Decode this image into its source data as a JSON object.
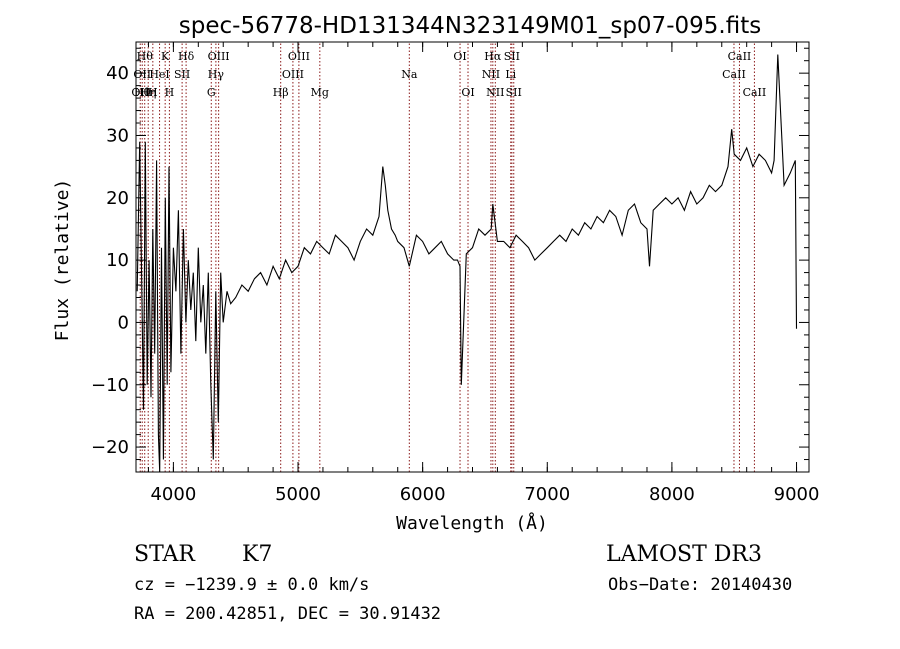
{
  "chart_data": {
    "type": "line",
    "title": "spec-56778-HD131344N323149M01_sp07-095.fits",
    "xlabel": "Wavelength (Å)",
    "ylabel": "Flux (relative)",
    "xlim": [
      3700,
      9100
    ],
    "ylim": [
      -24,
      45
    ],
    "xticks": [
      4000,
      5000,
      6000,
      7000,
      8000,
      9000
    ],
    "yticks": [
      -20,
      -10,
      0,
      10,
      20,
      30,
      40
    ],
    "grid": false,
    "line_color": "#000000",
    "marker_color": "#8b1a1a",
    "series": [
      {
        "x": [
          3710,
          3730,
          3760,
          3775,
          3790,
          3805,
          3820,
          3835,
          3850,
          3865,
          3880,
          3890,
          3905,
          3920,
          3935,
          3950,
          3965,
          3980,
          4000,
          4020,
          4040,
          4060,
          4080,
          4100,
          4120,
          4140,
          4160,
          4180,
          4200,
          4220,
          4240,
          4260,
          4280,
          4300,
          4320,
          4340,
          4360,
          4380,
          4400,
          4430,
          4460,
          4500,
          4550,
          4600,
          4650,
          4700,
          4750,
          4800,
          4850,
          4900,
          4950,
          5000,
          5050,
          5100,
          5150,
          5200,
          5250,
          5300,
          5350,
          5400,
          5450,
          5500,
          5550,
          5600,
          5650,
          5680,
          5700,
          5720,
          5750,
          5780,
          5800,
          5850,
          5893,
          5950,
          6000,
          6050,
          6100,
          6150,
          6200,
          6250,
          6280,
          6300,
          6310,
          6350,
          6400,
          6450,
          6500,
          6550,
          6563,
          6600,
          6650,
          6700,
          6750,
          6800,
          6850,
          6900,
          6950,
          7000,
          7050,
          7100,
          7150,
          7200,
          7250,
          7300,
          7350,
          7400,
          7450,
          7500,
          7550,
          7600,
          7650,
          7700,
          7750,
          7800,
          7820,
          7850,
          7900,
          7950,
          8000,
          8050,
          8100,
          8150,
          8200,
          8250,
          8300,
          8350,
          8400,
          8450,
          8480,
          8500,
          8550,
          8600,
          8650,
          8700,
          8750,
          8800,
          8820,
          8850,
          8900,
          8950,
          8990,
          9000
        ],
        "y": [
          5,
          29,
          -14,
          29,
          -10,
          10,
          -12,
          15,
          -5,
          26,
          -18,
          -24,
          12,
          -22,
          20,
          -10,
          25,
          -8,
          12,
          5,
          18,
          -5,
          15,
          0,
          10,
          2,
          8,
          -3,
          12,
          0,
          6,
          -5,
          8,
          -10,
          -22,
          5,
          -16,
          8,
          0,
          5,
          3,
          4,
          6,
          5,
          7,
          8,
          6,
          9,
          7,
          10,
          8,
          9,
          12,
          11,
          13,
          12,
          11,
          14,
          13,
          12,
          10,
          13,
          15,
          14,
          17,
          25,
          22,
          18,
          15,
          14,
          13,
          12,
          9,
          14,
          13,
          11,
          12,
          13,
          11,
          10,
          10,
          9,
          -10,
          11,
          12,
          15,
          14,
          15,
          19,
          13,
          13,
          12,
          14,
          13,
          12,
          10,
          11,
          12,
          13,
          14,
          13,
          15,
          14,
          16,
          15,
          17,
          16,
          18,
          17,
          14,
          18,
          19,
          16,
          15,
          9,
          18,
          19,
          20,
          19,
          20,
          18,
          21,
          19,
          20,
          22,
          21,
          22,
          25,
          31,
          27,
          26,
          28,
          25,
          27,
          26,
          24,
          26,
          43,
          22,
          24,
          26,
          -1
        ]
      }
    ],
    "line_markers": [
      {
        "x": 3734,
        "labels": [
          "OII"
        ],
        "row": 2
      },
      {
        "x": 3750,
        "labels": [
          "OII",
          "Hθ"
        ],
        "row": 1
      },
      {
        "x": 3770,
        "labels": [
          "Hθ"
        ],
        "row": 0
      },
      {
        "x": 3798,
        "labels": [
          "Hη"
        ],
        "row": 2
      },
      {
        "x": 3835,
        "labels": [
          "H"
        ],
        "row": 2
      },
      {
        "x": 3889,
        "labels": [
          "HeI"
        ],
        "row": 1
      },
      {
        "x": 3934,
        "labels": [
          "K"
        ],
        "row": 0
      },
      {
        "x": 3968,
        "labels": [
          "H"
        ],
        "row": 2
      },
      {
        "x": 4070,
        "labels": [
          "SII"
        ],
        "row": 1
      },
      {
        "x": 4102,
        "labels": [
          "Hδ"
        ],
        "row": 0
      },
      {
        "x": 4304,
        "labels": [
          "G"
        ],
        "row": 2
      },
      {
        "x": 4341,
        "labels": [
          "Hγ"
        ],
        "row": 1
      },
      {
        "x": 4363,
        "labels": [
          "OIII"
        ],
        "row": 0
      },
      {
        "x": 4861,
        "labels": [
          "Hβ"
        ],
        "row": 2
      },
      {
        "x": 4959,
        "labels": [
          "OIII"
        ],
        "row": 1
      },
      {
        "x": 5007,
        "labels": [
          "OIII"
        ],
        "row": 0
      },
      {
        "x": 5175,
        "labels": [
          "Mg"
        ],
        "row": 2
      },
      {
        "x": 5893,
        "labels": [
          "Na"
        ],
        "row": 1
      },
      {
        "x": 6300,
        "labels": [
          "OI"
        ],
        "row": 0
      },
      {
        "x": 6364,
        "labels": [
          "OI"
        ],
        "row": 2
      },
      {
        "x": 6548,
        "labels": [
          "NII"
        ],
        "row": 1
      },
      {
        "x": 6563,
        "labels": [
          "Hα"
        ],
        "row": 0
      },
      {
        "x": 6583,
        "labels": [
          "NII"
        ],
        "row": 2
      },
      {
        "x": 6707,
        "labels": [
          "Li"
        ],
        "row": 1
      },
      {
        "x": 6716,
        "labels": [
          "SII"
        ],
        "row": 0
      },
      {
        "x": 6731,
        "labels": [
          "SII"
        ],
        "row": 2
      },
      {
        "x": 8498,
        "labels": [
          "CaII"
        ],
        "row": 1
      },
      {
        "x": 8542,
        "labels": [
          "CaII"
        ],
        "row": 0
      },
      {
        "x": 8662,
        "labels": [
          "CaII"
        ],
        "row": 2
      }
    ]
  },
  "info": {
    "object_type": "STAR",
    "subclass": "K7",
    "survey": "LAMOST DR3",
    "cz_line": "cz = −1239.9 ± 0.0 km/s",
    "obs_date": "Obs−Date: 20140430",
    "coords_line": "RA = 200.42851, DEC =  30.91432"
  }
}
